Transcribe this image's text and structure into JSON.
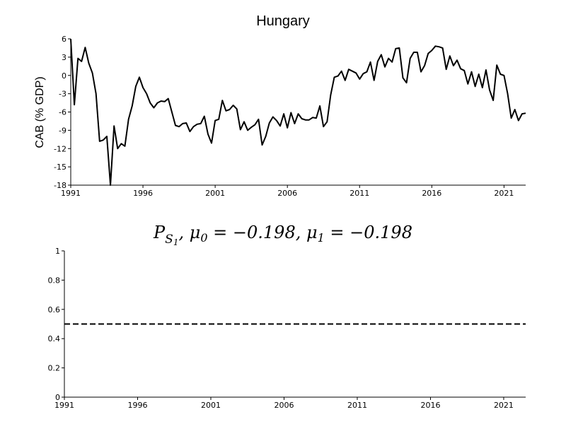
{
  "chart_data": [
    {
      "type": "line",
      "title": "Hungary",
      "xlabel": "",
      "ylabel": "CAB (% GDP)",
      "xlim": [
        1991,
        2022.5
      ],
      "ylim": [
        -18,
        6
      ],
      "x_ticks": [
        "1991",
        "1996",
        "2001",
        "2006",
        "2011",
        "2016",
        "2021"
      ],
      "y_ticks": [
        "6",
        "3",
        "0",
        "-3",
        "-6",
        "-9",
        "-12",
        "-15",
        "-18"
      ],
      "grid": false,
      "series": [
        {
          "x": [
            1991.0,
            1991.25,
            1991.5,
            1991.75,
            1992.0,
            1992.25,
            1992.5,
            1992.75,
            1993.0,
            1993.25,
            1993.5,
            1993.75,
            1994.0,
            1994.25,
            1994.5,
            1994.75,
            1995.0,
            1995.25,
            1995.5,
            1995.75,
            1996.0,
            1996.25,
            1996.5,
            1996.75,
            1997.0,
            1997.25,
            1997.5,
            1997.75,
            1998.0,
            1998.25,
            1998.5,
            1998.75,
            1999.0,
            1999.25,
            1999.5,
            1999.75,
            2000.0,
            2000.25,
            2000.5,
            2000.75,
            2001.0,
            2001.25,
            2001.5,
            2001.75,
            2002.0,
            2002.25,
            2002.5,
            2002.75,
            2003.0,
            2003.25,
            2003.5,
            2003.75,
            2004.0,
            2004.25,
            2004.5,
            2004.75,
            2005.0,
            2005.25,
            2005.5,
            2005.75,
            2006.0,
            2006.25,
            2006.5,
            2006.75,
            2007.0,
            2007.25,
            2007.5,
            2007.75,
            2008.0,
            2008.25,
            2008.5,
            2008.75,
            2009.0,
            2009.25,
            2009.5,
            2009.75,
            2010.0,
            2010.25,
            2010.5,
            2010.75,
            2011.0,
            2011.25,
            2011.5,
            2011.75,
            2012.0,
            2012.25,
            2012.5,
            2012.75,
            2013.0,
            2013.25,
            2013.5,
            2013.75,
            2014.0,
            2014.25,
            2014.5,
            2014.75,
            2015.0,
            2015.25,
            2015.5,
            2015.75,
            2016.0,
            2016.25,
            2016.5,
            2016.75,
            2017.0,
            2017.25,
            2017.5,
            2017.75,
            2018.0,
            2018.25,
            2018.5,
            2018.75,
            2019.0,
            2019.25,
            2019.5,
            2019.75,
            2020.0,
            2020.25,
            2020.5,
            2020.75,
            2021.0,
            2021.25,
            2021.5,
            2021.75,
            2022.0,
            2022.25,
            2022.5
          ],
          "values": [
            6.0,
            -4.8,
            2.8,
            2.3,
            4.6,
            2.0,
            0.4,
            -3.0,
            -10.8,
            -10.6,
            -10.0,
            -18.0,
            -8.3,
            -12.0,
            -11.2,
            -11.6,
            -7.2,
            -5.0,
            -1.8,
            -0.3,
            -2.0,
            -3.0,
            -4.5,
            -5.3,
            -4.5,
            -4.2,
            -4.3,
            -3.8,
            -6.0,
            -8.2,
            -8.4,
            -7.9,
            -7.8,
            -9.2,
            -8.4,
            -8.0,
            -7.9,
            -6.7,
            -9.6,
            -11.1,
            -7.4,
            -7.2,
            -4.1,
            -5.8,
            -5.6,
            -4.9,
            -5.5,
            -8.9,
            -7.6,
            -9.0,
            -8.5,
            -8.1,
            -7.2,
            -11.4,
            -10.0,
            -7.8,
            -6.8,
            -7.4,
            -8.3,
            -6.3,
            -8.6,
            -6.1,
            -7.9,
            -6.3,
            -7.1,
            -7.3,
            -7.3,
            -6.9,
            -7.0,
            -5.0,
            -8.4,
            -7.6,
            -3.2,
            -0.3,
            -0.1,
            0.7,
            -0.8,
            1.0,
            0.7,
            0.4,
            -0.6,
            0.3,
            0.6,
            2.2,
            -0.8,
            2.3,
            3.4,
            1.4,
            2.8,
            2.2,
            4.4,
            4.5,
            -0.4,
            -1.2,
            2.8,
            3.8,
            3.8,
            0.6,
            1.6,
            3.6,
            4.1,
            4.8,
            4.7,
            4.5,
            1.0,
            3.2,
            1.6,
            2.5,
            1.1,
            0.8,
            -1.4,
            0.6,
            -1.8,
            0.2,
            -2.0,
            0.9,
            -2.4,
            -4.1,
            1.7,
            0.2,
            0.0,
            -3.0,
            -7.0,
            -5.6,
            -7.4,
            -6.3,
            -6.2
          ]
        }
      ]
    },
    {
      "type": "line",
      "title": "P_{S_1}, μ_0 = −0.198, μ_1 = −0.198",
      "title_parts": {
        "P": "P",
        "S": "S",
        "one": "1",
        "mu": "μ",
        "zero": "0",
        "eq0": " = −0.198,",
        "eq1": " = −0.198"
      },
      "xlabel": "",
      "ylabel": "",
      "xlim": [
        1991,
        2022.5
      ],
      "ylim": [
        0,
        1
      ],
      "x_ticks": [
        "1991",
        "1996",
        "2001",
        "2006",
        "2011",
        "2016",
        "2021"
      ],
      "y_ticks": [
        "1",
        "0.8",
        "0.6",
        "0.4",
        "0.2",
        "0"
      ],
      "grid": false,
      "series": [
        {
          "line_style": "dashed",
          "x": [
            1991,
            2022.5
          ],
          "values": [
            0.5,
            0.5
          ]
        }
      ]
    }
  ]
}
